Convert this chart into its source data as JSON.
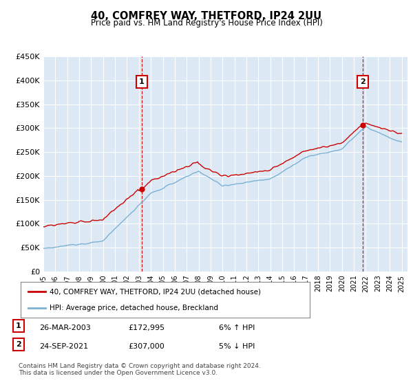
{
  "title": "40, COMFREY WAY, THETFORD, IP24 2UU",
  "subtitle": "Price paid vs. HM Land Registry's House Price Index (HPI)",
  "ylabel_ticks": [
    "£0",
    "£50K",
    "£100K",
    "£150K",
    "£200K",
    "£250K",
    "£300K",
    "£350K",
    "£400K",
    "£450K"
  ],
  "ytick_values": [
    0,
    50000,
    100000,
    150000,
    200000,
    250000,
    300000,
    350000,
    400000,
    450000
  ],
  "ylim": [
    0,
    450000
  ],
  "xlim_start": 1995.0,
  "xlim_end": 2025.5,
  "background_color": "#dce9f5",
  "grid_color": "#ffffff",
  "marker1_x": 2003.23,
  "marker1_y": 172995,
  "marker2_x": 2021.73,
  "marker2_y": 307000,
  "line1_color": "#cc0000",
  "line2_color": "#7ab0d4",
  "marker_box_color": "#cc0000",
  "vline_color": "#cc0000",
  "legend_line1": "40, COMFREY WAY, THETFORD, IP24 2UU (detached house)",
  "legend_line2": "HPI: Average price, detached house, Breckland",
  "marker1_date": "26-MAR-2003",
  "marker1_price": "£172,995",
  "marker1_hpi": "6% ↑ HPI",
  "marker2_date": "24-SEP-2021",
  "marker2_price": "£307,000",
  "marker2_hpi": "5% ↓ HPI",
  "footnote": "Contains HM Land Registry data © Crown copyright and database right 2024.\nThis data is licensed under the Open Government Licence v3.0.",
  "xtick_years": [
    1995,
    1996,
    1997,
    1998,
    1999,
    2000,
    2001,
    2002,
    2003,
    2004,
    2005,
    2006,
    2007,
    2008,
    2009,
    2010,
    2011,
    2012,
    2013,
    2014,
    2015,
    2016,
    2017,
    2018,
    2019,
    2020,
    2021,
    2022,
    2023,
    2024,
    2025
  ]
}
